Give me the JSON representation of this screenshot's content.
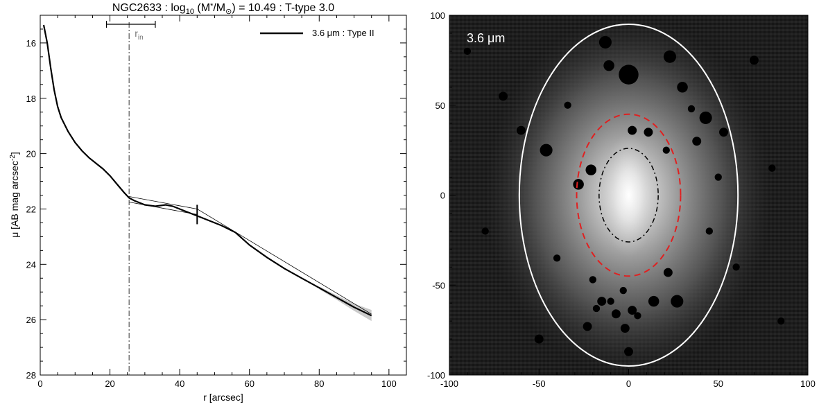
{
  "chart_data": [
    {
      "type": "line",
      "title_prefix": "NGC2633 : log",
      "title_sub": "10",
      "title_mid": " (M",
      "title_star": "*",
      "title_slash": "/M",
      "title_sun": "⊙",
      "title_suffix": ") = 10.49 : T-type 3.0",
      "xlabel": "r [arcsec]",
      "ylabel_main": "μ [AB mag arcsec",
      "ylabel_sup": "-2",
      "ylabel_end": "]",
      "xlim": [
        0,
        105
      ],
      "ylim": [
        28,
        15
      ],
      "xticks": [
        0,
        20,
        40,
        60,
        80,
        100
      ],
      "yticks": [
        16,
        18,
        20,
        22,
        24,
        26,
        28
      ],
      "legend": {
        "label": "3.6 μm : Type II",
        "placement": "top-right"
      },
      "r_in": {
        "x": 25.5,
        "label": "r",
        "label_sub": "in",
        "err_low": 19,
        "err_high": 33
      },
      "break_marker": {
        "x": 45,
        "y": 22.2
      },
      "series": [
        {
          "name": "3.6 μm : Type II",
          "x": [
            1,
            2,
            3,
            4,
            5,
            6,
            8,
            10,
            12,
            14,
            16,
            18,
            20,
            22,
            24,
            25.5,
            27,
            30,
            33,
            36,
            38,
            40,
            42,
            45,
            48,
            52,
            56,
            60,
            65,
            70,
            75,
            80,
            85,
            90,
            95
          ],
          "y": [
            15.35,
            16.0,
            16.9,
            17.7,
            18.3,
            18.7,
            19.2,
            19.6,
            19.9,
            20.15,
            20.35,
            20.55,
            20.8,
            21.1,
            21.4,
            21.6,
            21.7,
            21.85,
            21.9,
            21.85,
            21.9,
            22.0,
            22.1,
            22.25,
            22.4,
            22.6,
            22.85,
            23.3,
            23.75,
            24.15,
            24.5,
            24.85,
            25.2,
            25.55,
            25.85
          ]
        }
      ],
      "fits": [
        {
          "x": [
            25.5,
            45
          ],
          "y": [
            21.55,
            22.0
          ]
        },
        {
          "x": [
            25.5,
            45
          ],
          "y": [
            21.75,
            22.2
          ]
        },
        {
          "x": [
            45,
            95
          ],
          "y": [
            22.0,
            25.8
          ]
        }
      ],
      "band_x": [
        80,
        85,
        90,
        95
      ],
      "band_width": [
        0.05,
        0.08,
        0.13,
        0.2
      ]
    },
    {
      "type": "image",
      "label": "3.6 μm",
      "xlim": [
        -100,
        100
      ],
      "ylim": [
        -100,
        100
      ],
      "xticks": [
        -100,
        -50,
        0,
        50,
        100
      ],
      "yticks": [
        -100,
        -50,
        0,
        50,
        100
      ],
      "ellipses": [
        {
          "name": "outer-ellipse",
          "cx": 0,
          "cy": 0,
          "rx": 61,
          "ry": 95,
          "color": "#ffffff",
          "style": "solid"
        },
        {
          "name": "break-ellipse",
          "cx": 0,
          "cy": 0,
          "rx": 29,
          "ry": 45,
          "color": "#e02020",
          "style": "dashed"
        },
        {
          "name": "inner-ellipse",
          "cx": 0,
          "cy": 0,
          "rx": 16.5,
          "ry": 26,
          "color": "#000000",
          "style": "dashdot"
        }
      ],
      "masks": [
        {
          "x": 0,
          "y": 67,
          "r": 5.5
        },
        {
          "x": -13,
          "y": 85,
          "r": 3.5
        },
        {
          "x": -11,
          "y": 72,
          "r": 3
        },
        {
          "x": 23,
          "y": 77,
          "r": 3.5
        },
        {
          "x": 30,
          "y": 60,
          "r": 3
        },
        {
          "x": 43,
          "y": 43,
          "r": 3.5
        },
        {
          "x": 38,
          "y": 30,
          "r": 2.5
        },
        {
          "x": -34,
          "y": 50,
          "r": 2
        },
        {
          "x": 35,
          "y": 48,
          "r": 2
        },
        {
          "x": 2,
          "y": 36,
          "r": 2.5
        },
        {
          "x": 11,
          "y": 35,
          "r": 2.5
        },
        {
          "x": -46,
          "y": 25,
          "r": 3.5
        },
        {
          "x": -21,
          "y": 14,
          "r": 3
        },
        {
          "x": -28,
          "y": 6,
          "r": 3
        },
        {
          "x": 21,
          "y": 25,
          "r": 2
        },
        {
          "x": 53,
          "y": 35,
          "r": 2.5
        },
        {
          "x": 50,
          "y": 10,
          "r": 2
        },
        {
          "x": 45,
          "y": -20,
          "r": 2
        },
        {
          "x": 22,
          "y": -43,
          "r": 2.5
        },
        {
          "x": -20,
          "y": -47,
          "r": 2
        },
        {
          "x": -15,
          "y": -59,
          "r": 2.5
        },
        {
          "x": -7,
          "y": -66,
          "r": 2.5
        },
        {
          "x": -18,
          "y": -63,
          "r": 2
        },
        {
          "x": -3,
          "y": -53,
          "r": 2
        },
        {
          "x": -10,
          "y": -59,
          "r": 2
        },
        {
          "x": 2,
          "y": -64,
          "r": 2.5
        },
        {
          "x": 14,
          "y": -59,
          "r": 3
        },
        {
          "x": 27,
          "y": -59,
          "r": 3.5
        },
        {
          "x": -2,
          "y": -74,
          "r": 2.5
        },
        {
          "x": 5,
          "y": -67,
          "r": 2
        },
        {
          "x": -23,
          "y": -73,
          "r": 2.5
        },
        {
          "x": 0,
          "y": -87,
          "r": 2.5
        },
        {
          "x": -60,
          "y": 36,
          "r": 2.5
        },
        {
          "x": -40,
          "y": -35,
          "r": 2
        },
        {
          "x": 60,
          "y": -40,
          "r": 2
        },
        {
          "x": -70,
          "y": 55,
          "r": 2.5
        },
        {
          "x": 70,
          "y": 75,
          "r": 2.5
        },
        {
          "x": -50,
          "y": -80,
          "r": 2.5
        },
        {
          "x": -80,
          "y": -20,
          "r": 2
        },
        {
          "x": 80,
          "y": 15,
          "r": 2
        },
        {
          "x": -90,
          "y": 80,
          "r": 2
        },
        {
          "x": 85,
          "y": -70,
          "r": 2
        }
      ]
    }
  ]
}
